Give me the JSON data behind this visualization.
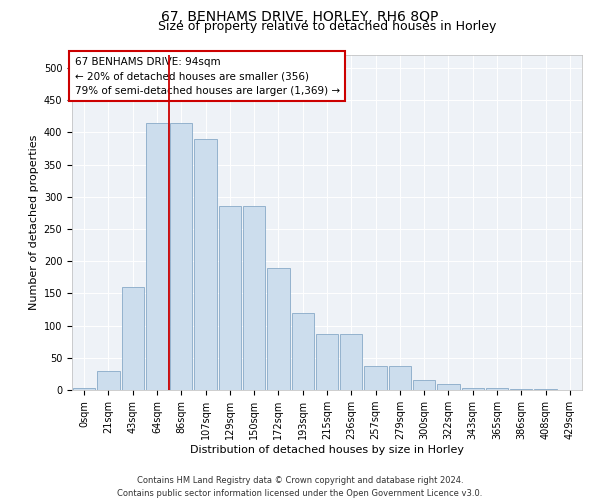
{
  "title": "67, BENHAMS DRIVE, HORLEY, RH6 8QP",
  "subtitle": "Size of property relative to detached houses in Horley",
  "xlabel": "Distribution of detached houses by size in Horley",
  "ylabel": "Number of detached properties",
  "footer_line1": "Contains HM Land Registry data © Crown copyright and database right 2024.",
  "footer_line2": "Contains public sector information licensed under the Open Government Licence v3.0.",
  "annotation_line1": "67 BENHAMS DRIVE: 94sqm",
  "annotation_line2": "← 20% of detached houses are smaller (356)",
  "annotation_line3": "79% of semi-detached houses are larger (1,369) →",
  "bar_labels": [
    "0sqm",
    "21sqm",
    "43sqm",
    "64sqm",
    "86sqm",
    "107sqm",
    "129sqm",
    "150sqm",
    "172sqm",
    "193sqm",
    "215sqm",
    "236sqm",
    "257sqm",
    "279sqm",
    "300sqm",
    "322sqm",
    "343sqm",
    "365sqm",
    "386sqm",
    "408sqm",
    "429sqm"
  ],
  "bar_values": [
    3,
    30,
    160,
    415,
    415,
    390,
    285,
    285,
    190,
    120,
    87,
    87,
    38,
    38,
    15,
    10,
    3,
    3,
    1,
    1,
    0
  ],
  "bar_color": "#ccdded",
  "bar_edge_color": "#88aac8",
  "vline_color": "#cc0000",
  "vline_x": 4.5,
  "ylim": [
    0,
    520
  ],
  "yticks": [
    0,
    50,
    100,
    150,
    200,
    250,
    300,
    350,
    400,
    450,
    500
  ],
  "annotation_box_color": "#cc0000",
  "bg_color": "#eef2f7",
  "title_fontsize": 10,
  "subtitle_fontsize": 9,
  "axis_label_fontsize": 8,
  "tick_fontsize": 7,
  "annotation_fontsize": 7.5
}
